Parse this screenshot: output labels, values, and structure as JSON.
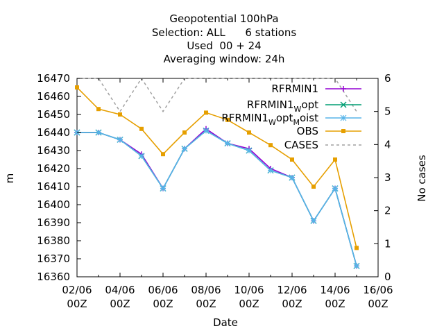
{
  "chart_data": {
    "type": "line",
    "title_lines": [
      "Geopotential 100hPa",
      "Selection: ALL      6 stations",
      "Used  00 + 24",
      "Averaging window: 24h"
    ],
    "xlabel": "Date",
    "ylabel": "m",
    "y2label": "No cases",
    "x_ticks": [
      "02/06\n00Z",
      "04/06\n00Z",
      "06/06\n00Z",
      "08/06\n00Z",
      "10/06\n00Z",
      "12/06\n00Z",
      "14/06\n00Z",
      "16/06\n00Z"
    ],
    "x": [
      "2024-06-02",
      "2024-06-03",
      "2024-06-04",
      "2024-06-05",
      "2024-06-06",
      "2024-06-07",
      "2024-06-08",
      "2024-06-09",
      "2024-06-10",
      "2024-06-11",
      "2024-06-12",
      "2024-06-13",
      "2024-06-14",
      "2024-06-15"
    ],
    "xlim": [
      "2024-06-02",
      "2024-06-16"
    ],
    "ylim": [
      16360,
      16470
    ],
    "yticks": [
      16360,
      16370,
      16380,
      16390,
      16400,
      16410,
      16420,
      16430,
      16440,
      16450,
      16460,
      16470
    ],
    "y2lim": [
      0,
      6
    ],
    "y2ticks": [
      0,
      1,
      2,
      3,
      4,
      5,
      6
    ],
    "grid": false,
    "legend_position": "top-right",
    "series": [
      {
        "name": "RFRMIN1",
        "legend_parts": [
          "RFRMIN1"
        ],
        "axis": "y",
        "color": "#9400d3",
        "marker": "plus",
        "dash": false,
        "values": [
          16440,
          16440,
          16436,
          16428,
          16409,
          16431,
          16442,
          16434,
          16431,
          16420,
          16415,
          16391,
          16409,
          16366
        ]
      },
      {
        "name": "RFRMIN1_Wopt",
        "legend_parts": [
          "RFRMIN1",
          "W",
          "opt"
        ],
        "axis": "y",
        "color": "#009e73",
        "marker": "x",
        "dash": false,
        "values": [
          16440,
          16440,
          16436,
          16427,
          16409,
          16431,
          16441,
          16434,
          16430,
          16419,
          16415,
          16391,
          16409,
          16366
        ]
      },
      {
        "name": "RFRMIN1_Wopt_Moist",
        "legend_parts": [
          "RFRMIN1",
          "W",
          "opt",
          "M",
          "oist"
        ],
        "axis": "y",
        "color": "#56b4e9",
        "marker": "star",
        "dash": false,
        "values": [
          16440,
          16440,
          16436,
          16427,
          16409,
          16431,
          16441,
          16434,
          16430,
          16419,
          16415,
          16391,
          16409,
          16366
        ]
      },
      {
        "name": "OBS",
        "legend_parts": [
          "OBS"
        ],
        "axis": "y",
        "color": "#e69f00",
        "marker": "box",
        "dash": false,
        "values": [
          16465,
          16453,
          16450,
          16442,
          16428,
          16440,
          16451,
          16447,
          16440,
          16433,
          16425,
          16410,
          16425,
          16376
        ]
      },
      {
        "name": "CASES",
        "legend_parts": [
          "CASES"
        ],
        "axis": "y2",
        "color": "#a0a0a0",
        "marker": "none",
        "dash": true,
        "values": [
          6,
          6,
          5,
          6,
          5,
          6,
          6,
          6,
          6,
          6,
          6,
          6,
          6,
          5
        ]
      }
    ]
  }
}
